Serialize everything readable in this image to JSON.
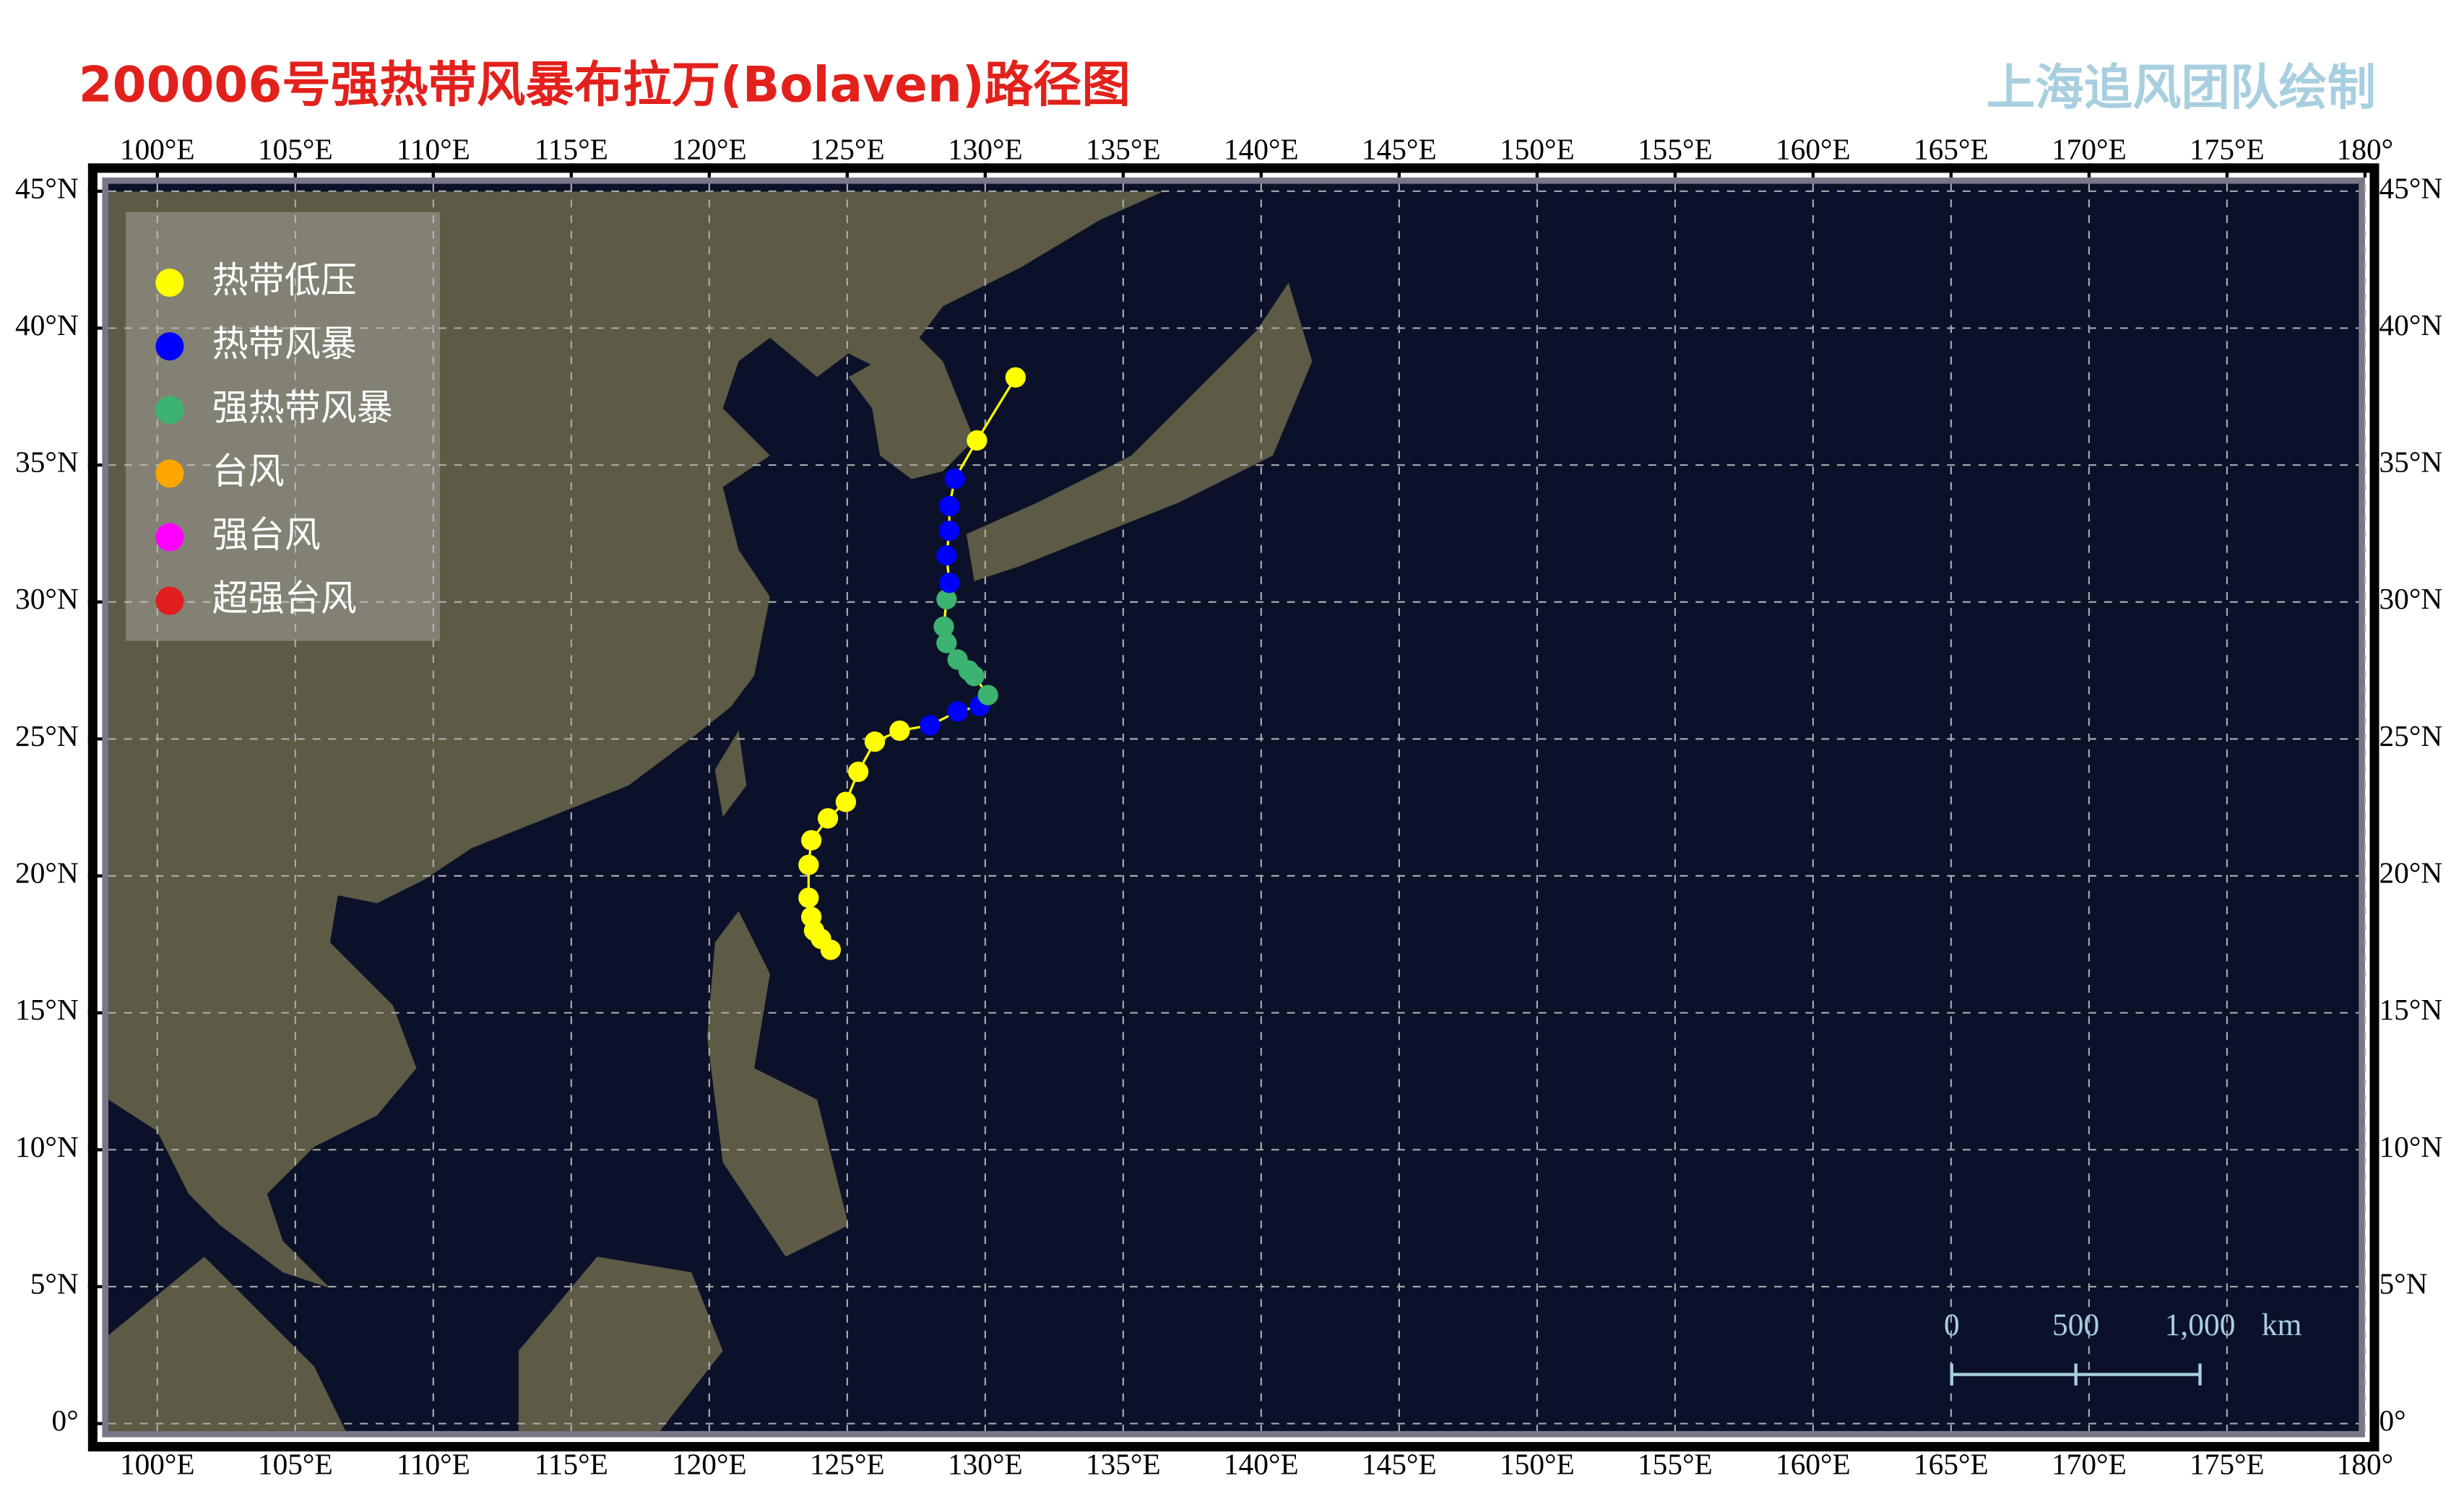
{
  "chart_data": {
    "type": "track",
    "title": "200006号强热带风暴布拉万(Bolaven)路径图",
    "credit": "上海追风团队绘制",
    "x": [
      124.4,
      124.05,
      123.8,
      123.7,
      123.6,
      123.6,
      123.7,
      124.3,
      124.95,
      125.4,
      126.0,
      126.9,
      128.0,
      129.0,
      129.8,
      130.1,
      129.6,
      129.4,
      129.0,
      128.6,
      128.5,
      128.6,
      128.7,
      128.6,
      128.7,
      128.7,
      128.9,
      129.7,
      131.1
    ],
    "values": [
      17.3,
      17.7,
      18.0,
      18.5,
      19.2,
      20.4,
      21.3,
      22.1,
      22.7,
      23.8,
      24.9,
      25.3,
      25.5,
      26.0,
      26.2,
      26.6,
      27.3,
      27.5,
      27.9,
      28.5,
      29.1,
      30.1,
      30.7,
      31.7,
      32.6,
      33.5,
      34.5,
      35.9,
      38.2
    ],
    "point_colors": [
      "#ffff00",
      "#ffff00",
      "#ffff00",
      "#ffff00",
      "#ffff00",
      "#ffff00",
      "#ffff00",
      "#ffff00",
      "#ffff00",
      "#ffff00",
      "#ffff00",
      "#ffff00",
      "#0000ff",
      "#0000ff",
      "#0000ff",
      "#3cb371",
      "#3cb371",
      "#3cb371",
      "#3cb371",
      "#3cb371",
      "#3cb371",
      "#3cb371",
      "#0000ff",
      "#0000ff",
      "#0000ff",
      "#0000ff",
      "#0000ff",
      "#ffff00",
      "#ffff00"
    ],
    "line_color": "#ffff00",
    "legend": [
      {
        "name": "热带低压",
        "color": "#ffff00"
      },
      {
        "name": "热带风暴",
        "color": "#0000ff"
      },
      {
        "name": "强热带风暴",
        "color": "#3cb371"
      },
      {
        "name": "台风",
        "color": "#ffa500"
      },
      {
        "name": "强台风",
        "color": "#ff00ff"
      },
      {
        "name": "超强台风",
        "color": "#e01e1e"
      }
    ],
    "legend_position": "upper left",
    "xlim": [
      98,
      180
    ],
    "ylim": [
      -0.5,
      45.5
    ],
    "xticks": [
      {
        "value": 100,
        "label": "100°E"
      },
      {
        "value": 105,
        "label": "105°E"
      },
      {
        "value": 110,
        "label": "110°E"
      },
      {
        "value": 115,
        "label": "115°E"
      },
      {
        "value": 120,
        "label": "120°E"
      },
      {
        "value": 125,
        "label": "125°E"
      },
      {
        "value": 130,
        "label": "130°E"
      },
      {
        "value": 135,
        "label": "135°E"
      },
      {
        "value": 140,
        "label": "140°E"
      },
      {
        "value": 145,
        "label": "145°E"
      },
      {
        "value": 150,
        "label": "150°E"
      },
      {
        "value": 155,
        "label": "155°E"
      },
      {
        "value": 160,
        "label": "160°E"
      },
      {
        "value": 165,
        "label": "165°E"
      },
      {
        "value": 170,
        "label": "170°E"
      },
      {
        "value": 175,
        "label": "175°E"
      },
      {
        "value": 180,
        "label": "180°"
      }
    ],
    "yticks": [
      {
        "value": 0,
        "label": "0°"
      },
      {
        "value": 5,
        "label": "5°N"
      },
      {
        "value": 10,
        "label": "10°N"
      },
      {
        "value": 15,
        "label": "15°N"
      },
      {
        "value": 20,
        "label": "20°N"
      },
      {
        "value": 25,
        "label": "25°N"
      },
      {
        "value": 30,
        "label": "30°N"
      },
      {
        "value": 35,
        "label": "35°N"
      },
      {
        "value": 40,
        "label": "40°N"
      },
      {
        "value": 45,
        "label": "45°N"
      }
    ],
    "grid": true,
    "scale_bar": {
      "labels": [
        "0",
        "500",
        "1,000"
      ],
      "unit": "km"
    }
  }
}
